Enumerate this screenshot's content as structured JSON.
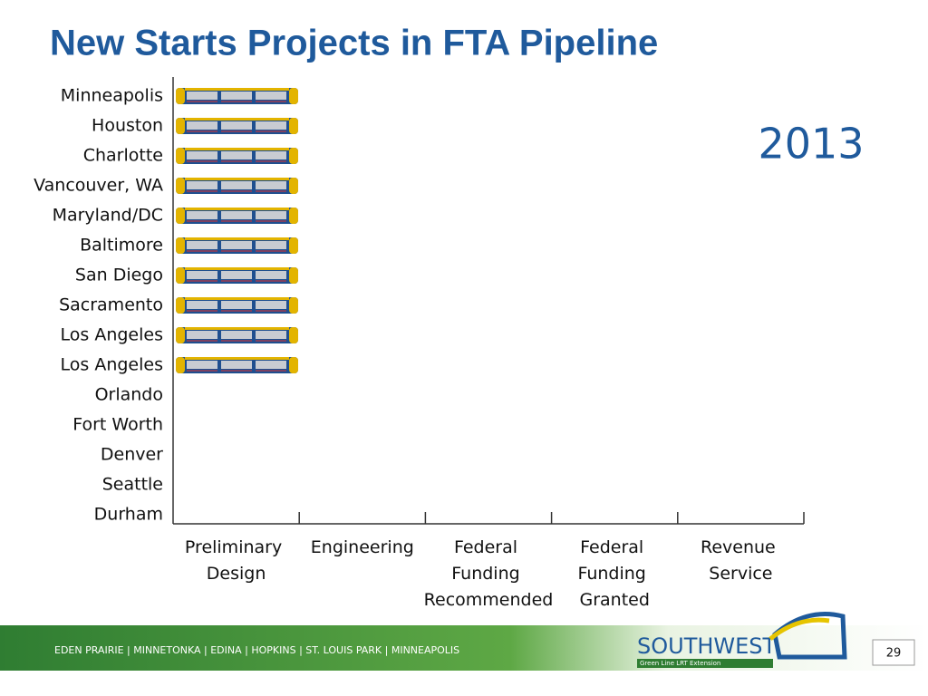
{
  "title": "New Starts Projects in FTA Pipeline",
  "year": "2013",
  "stages": [
    "Preliminary Design",
    "Engineering",
    "Federal Funding Recommended",
    "Federal Funding Granted",
    "Revenue Service"
  ],
  "rows": [
    {
      "label": "Minneapolis",
      "stage": "Preliminary Design"
    },
    {
      "label": "Houston",
      "stage": "Preliminary Design"
    },
    {
      "label": "Charlotte",
      "stage": "Preliminary Design"
    },
    {
      "label": "Vancouver, WA",
      "stage": "Preliminary Design"
    },
    {
      "label": "Maryland/DC",
      "stage": "Preliminary Design"
    },
    {
      "label": "Baltimore",
      "stage": "Preliminary Design"
    },
    {
      "label": "San Diego",
      "stage": "Preliminary Design"
    },
    {
      "label": "Sacramento",
      "stage": "Preliminary Design"
    },
    {
      "label": "Los Angeles",
      "stage": "Preliminary Design"
    },
    {
      "label": "Los Angeles",
      "stage": "Preliminary Design"
    },
    {
      "label": "Orlando"
    },
    {
      "label": "Fort Worth"
    },
    {
      "label": "Denver"
    },
    {
      "label": "Seattle"
    },
    {
      "label": "Durham"
    }
  ],
  "footer": {
    "cities": "EDEN PRAIRIE | MINNETONKA | EDINA | HOPKINS | ST. LOUIS PARK | MINNEAPOLIS",
    "logo": "SOUTHWEST",
    "logo_sub": "Green Line LRT Extension",
    "page": "29"
  }
}
